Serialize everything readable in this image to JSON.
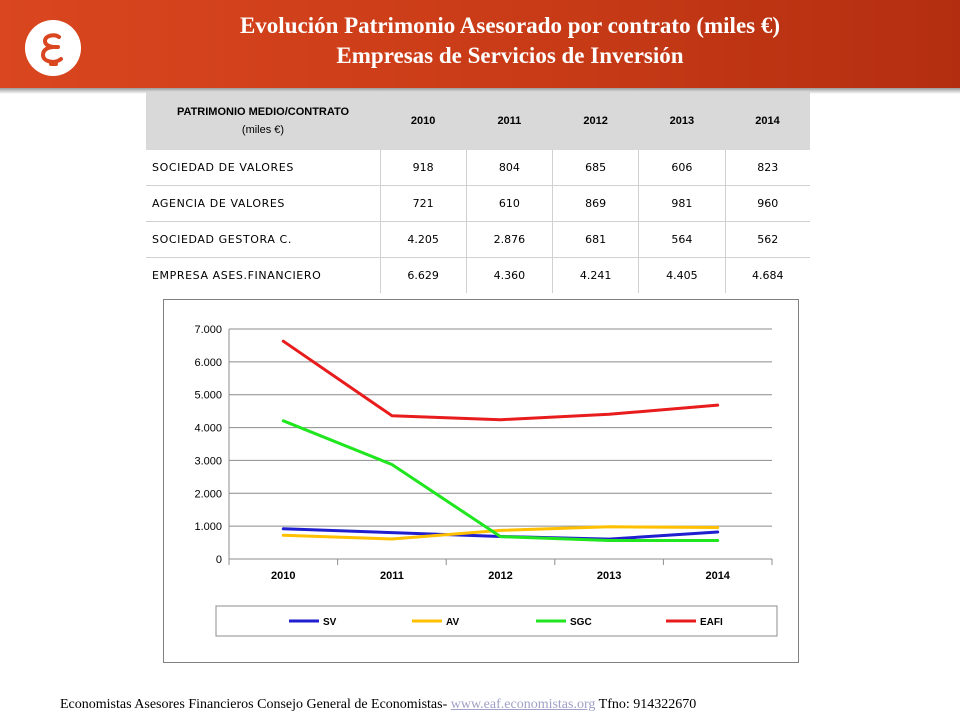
{
  "header": {
    "title_line1": "Evolución Patrimonio Asesorado por contrato (miles €)",
    "title_line2": "Empresas de Servicios de Inversión",
    "logo_glyph": "Ɛ"
  },
  "table": {
    "corner_line1": "PATRIMONIO MEDIO/CONTRATO",
    "corner_line2": "(miles €)",
    "years": [
      "2010",
      "2011",
      "2012",
      "2013",
      "2014"
    ],
    "rows": [
      {
        "label": "SOCIEDAD DE VALORES",
        "values": [
          "918",
          "804",
          "685",
          "606",
          "823"
        ]
      },
      {
        "label": "AGENCIA DE VALORES",
        "values": [
          "721",
          "610",
          "869",
          "981",
          "960"
        ]
      },
      {
        "label": "SOCIEDAD GESTORA C.",
        "values": [
          "4.205",
          "2.876",
          "681",
          "564",
          "562"
        ]
      },
      {
        "label": "EMPRESA ASES.FINANCIERO",
        "values": [
          "6.629",
          "4.360",
          "4.241",
          "4.405",
          "4.684"
        ]
      }
    ]
  },
  "chart_data": {
    "type": "line",
    "title": "",
    "xlabel": "",
    "ylabel": "",
    "categories": [
      "2010",
      "2011",
      "2012",
      "2013",
      "2014"
    ],
    "ylim": [
      0,
      7000
    ],
    "y_ticks": [
      0,
      1000,
      2000,
      3000,
      4000,
      5000,
      6000,
      7000
    ],
    "y_tick_labels": [
      "0",
      "1.000",
      "2.000",
      "3.000",
      "4.000",
      "5.000",
      "6.000",
      "7.000"
    ],
    "grid": "horizontal",
    "legend_position": "bottom",
    "series": [
      {
        "name": "SV",
        "color": "#1f1fd0",
        "values": [
          918,
          804,
          685,
          606,
          823
        ]
      },
      {
        "name": "AV",
        "color": "#ffc000",
        "values": [
          721,
          610,
          869,
          981,
          960
        ]
      },
      {
        "name": "SGC",
        "color": "#1fe61f",
        "values": [
          4205,
          2876,
          681,
          564,
          562
        ]
      },
      {
        "name": "EAFI",
        "color": "#e81c1c",
        "values": [
          6629,
          4360,
          4241,
          4405,
          4684
        ]
      }
    ]
  },
  "footer": {
    "text_before": "Economistas Asesores Financieros Consejo General de Economistas- ",
    "link_text": "www.eaf.economistas.org",
    "text_after": " Tfno: 914322670"
  }
}
